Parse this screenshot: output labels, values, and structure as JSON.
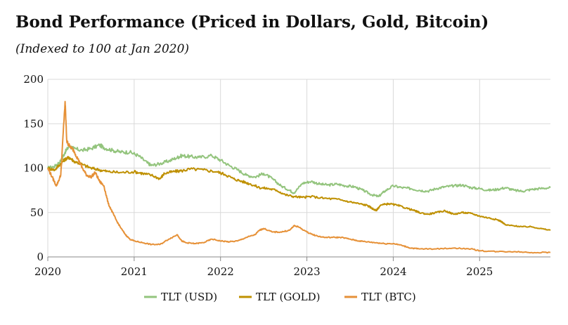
{
  "chart_data": {
    "type": "line",
    "title": "Bond Performance (Priced in Dollars, Gold, Bitcoin)",
    "subtitle": "(Indexed to 100 at Jan 2020)",
    "xlabel": "",
    "ylabel": "",
    "xlim": [
      2020.0,
      2025.82
    ],
    "ylim": [
      0,
      200
    ],
    "x_ticks": [
      2020,
      2021,
      2022,
      2023,
      2024,
      2025
    ],
    "x_tick_labels": [
      "2020",
      "2021",
      "2022",
      "2023",
      "2024",
      "2025"
    ],
    "y_ticks": [
      0,
      50,
      100,
      150,
      200
    ],
    "y_tick_labels": [
      "0",
      "50",
      "100",
      "150",
      "200"
    ],
    "grid": true,
    "legend_position": "bottom-center",
    "series": [
      {
        "name": "TLT (USD)",
        "color": "#93c47d",
        "x": [
          2020.0,
          2020.08,
          2020.15,
          2020.2,
          2020.25,
          2020.3,
          2020.4,
          2020.5,
          2020.6,
          2020.65,
          2020.75,
          2020.85,
          2020.95,
          2021.05,
          2021.15,
          2021.2,
          2021.3,
          2021.4,
          2021.5,
          2021.55,
          2021.65,
          2021.75,
          2021.9,
          2022.0,
          2022.1,
          2022.2,
          2022.3,
          2022.4,
          2022.5,
          2022.6,
          2022.7,
          2022.8,
          2022.85,
          2022.95,
          2023.05,
          2023.15,
          2023.25,
          2023.35,
          2023.45,
          2023.55,
          2023.65,
          2023.75,
          2023.83,
          2023.9,
          2024.0,
          2024.1,
          2024.2,
          2024.3,
          2024.4,
          2024.5,
          2024.6,
          2024.7,
          2024.8,
          2024.9,
          2025.0,
          2025.1,
          2025.2,
          2025.3,
          2025.4,
          2025.5,
          2025.6,
          2025.7,
          2025.82
        ],
        "values": [
          100,
          102,
          108,
          118,
          125,
          122,
          120,
          122,
          126,
          123,
          120,
          118,
          118,
          114,
          106,
          103,
          105,
          108,
          112,
          114,
          113,
          112,
          114,
          109,
          103,
          98,
          92,
          90,
          94,
          88,
          80,
          75,
          72,
          83,
          85,
          82,
          81,
          82,
          80,
          79,
          75,
          70,
          68,
          74,
          80,
          78,
          77,
          75,
          74,
          77,
          79,
          80,
          81,
          78,
          77,
          75,
          76,
          78,
          75,
          74,
          76,
          77,
          78
        ]
      },
      {
        "name": "TLT (GOLD)",
        "color": "#bf9000",
        "x": [
          2020.0,
          2020.08,
          2020.15,
          2020.2,
          2020.25,
          2020.3,
          2020.4,
          2020.5,
          2020.6,
          2020.7,
          2020.85,
          2021.0,
          2021.1,
          2021.2,
          2021.3,
          2021.35,
          2021.45,
          2021.55,
          2021.65,
          2021.8,
          2021.95,
          2022.05,
          2022.15,
          2022.25,
          2022.35,
          2022.45,
          2022.55,
          2022.65,
          2022.75,
          2022.85,
          2022.95,
          2023.05,
          2023.2,
          2023.35,
          2023.5,
          2023.6,
          2023.7,
          2023.75,
          2023.8,
          2023.85,
          2023.95,
          2024.05,
          2024.15,
          2024.25,
          2024.3,
          2024.4,
          2024.5,
          2024.6,
          2024.7,
          2024.8,
          2024.9,
          2025.0,
          2025.1,
          2025.2,
          2025.25,
          2025.3,
          2025.4,
          2025.5,
          2025.6,
          2025.7,
          2025.82
        ],
        "values": [
          100,
          98,
          105,
          110,
          112,
          108,
          104,
          100,
          98,
          96,
          95,
          96,
          94,
          92,
          88,
          94,
          96,
          97,
          99,
          98,
          96,
          93,
          88,
          85,
          82,
          78,
          77,
          75,
          70,
          68,
          67,
          68,
          66,
          65,
          62,
          60,
          58,
          55,
          52,
          58,
          60,
          58,
          55,
          52,
          50,
          48,
          50,
          52,
          48,
          50,
          49,
          46,
          44,
          42,
          40,
          36,
          35,
          34,
          34,
          32,
          30
        ]
      },
      {
        "name": "TLT (BTC)",
        "color": "#e69138",
        "x": [
          2020.0,
          2020.05,
          2020.1,
          2020.15,
          2020.2,
          2020.22,
          2020.25,
          2020.3,
          2020.35,
          2020.4,
          2020.45,
          2020.5,
          2020.55,
          2020.6,
          2020.65,
          2020.7,
          2020.75,
          2020.8,
          2020.85,
          2020.9,
          2020.95,
          2021.0,
          2021.1,
          2021.2,
          2021.3,
          2021.4,
          2021.5,
          2021.55,
          2021.6,
          2021.7,
          2021.8,
          2021.9,
          2022.0,
          2022.1,
          2022.2,
          2022.3,
          2022.4,
          2022.45,
          2022.5,
          2022.6,
          2022.7,
          2022.8,
          2022.85,
          2022.9,
          2023.0,
          2023.1,
          2023.2,
          2023.3,
          2023.4,
          2023.5,
          2023.6,
          2023.7,
          2023.8,
          2023.9,
          2024.0,
          2024.1,
          2024.2,
          2024.3,
          2024.5,
          2024.7,
          2024.9,
          2025.0,
          2025.2,
          2025.4,
          2025.6,
          2025.82
        ],
        "values": [
          100,
          90,
          80,
          92,
          175,
          130,
          125,
          120,
          110,
          100,
          92,
          90,
          95,
          85,
          80,
          60,
          50,
          40,
          32,
          25,
          20,
          18,
          16,
          14,
          14,
          20,
          25,
          18,
          16,
          15,
          16,
          20,
          18,
          17,
          18,
          22,
          25,
          30,
          32,
          28,
          28,
          30,
          35,
          34,
          28,
          24,
          22,
          22,
          22,
          20,
          18,
          17,
          16,
          15,
          15,
          13,
          10,
          9,
          9,
          10,
          9,
          7,
          6,
          6,
          5,
          5
        ]
      }
    ]
  }
}
